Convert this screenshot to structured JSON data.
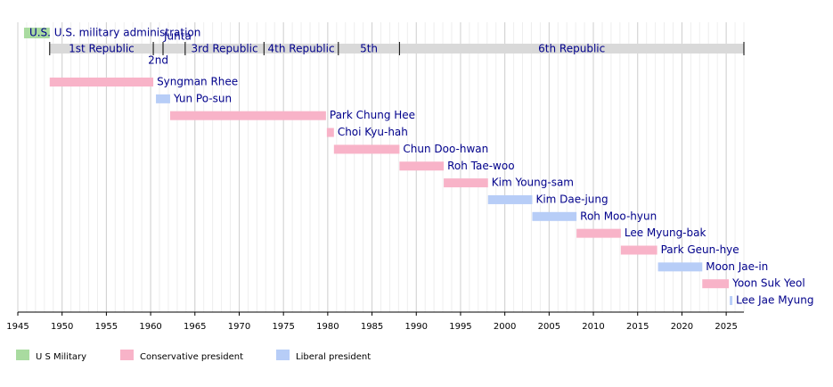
{
  "chart_data": {
    "type": "timeline",
    "xlim": [
      1945,
      2027
    ],
    "xticks": [
      1945,
      1950,
      1955,
      1960,
      1965,
      1970,
      1975,
      1980,
      1985,
      1990,
      1995,
      2000,
      2005,
      2010,
      2015,
      2020,
      2025
    ],
    "grid": true,
    "administration": {
      "label": "U.S. military administration",
      "short": "U.S.",
      "start": 1945.7,
      "end": 1948.6,
      "color": "#a9dba0"
    },
    "periods": [
      {
        "label": "1st Republic",
        "start": 1948.6,
        "end": 1960.3
      },
      {
        "label": "2nd",
        "start": 1960.3,
        "end": 1961.4
      },
      {
        "label": "Junta",
        "start": 1961.4,
        "end": 1963.9
      },
      {
        "label": "3rd Republic",
        "start": 1963.9,
        "end": 1972.8
      },
      {
        "label": "4th Republic",
        "start": 1972.8,
        "end": 1981.2
      },
      {
        "label": "5th",
        "start": 1981.2,
        "end": 1988.1
      },
      {
        "label": "6th Republic",
        "start": 1988.1,
        "end": 2027
      }
    ],
    "period_color": "#d9d9d9",
    "presidents": [
      {
        "name": "Syngman Rhee",
        "start": 1948.6,
        "end": 1960.3,
        "color": "#f8b3c8"
      },
      {
        "name": "Yun Po-sun",
        "start": 1960.6,
        "end": 1962.2,
        "color": "#b7cdf7"
      },
      {
        "name": "Park Chung Hee",
        "start": 1962.2,
        "end": 1979.8,
        "color": "#f8b3c8"
      },
      {
        "name": "Choi Kyu-hah",
        "start": 1979.9,
        "end": 1980.7,
        "color": "#f8b3c8"
      },
      {
        "name": "Chun Doo-hwan",
        "start": 1980.7,
        "end": 1988.1,
        "color": "#f8b3c8"
      },
      {
        "name": "Roh Tae-woo",
        "start": 1988.1,
        "end": 1993.1,
        "color": "#f8b3c8"
      },
      {
        "name": "Kim Young-sam",
        "start": 1993.1,
        "end": 1998.1,
        "color": "#f8b3c8"
      },
      {
        "name": "Kim Dae-jung",
        "start": 1998.1,
        "end": 2003.1,
        "color": "#b7cdf7"
      },
      {
        "name": "Roh Moo-hyun",
        "start": 2003.1,
        "end": 2008.1,
        "color": "#b7cdf7"
      },
      {
        "name": "Lee Myung-bak",
        "start": 2008.1,
        "end": 2013.1,
        "color": "#f8b3c8"
      },
      {
        "name": "Park Geun-hye",
        "start": 2013.1,
        "end": 2017.2,
        "color": "#f8b3c8"
      },
      {
        "name": "Moon Jae-in",
        "start": 2017.3,
        "end": 2022.3,
        "color": "#b7cdf7"
      },
      {
        "name": "Yoon Suk Yeol",
        "start": 2022.3,
        "end": 2025.3,
        "color": "#f8b3c8"
      },
      {
        "name": "Lee Jae Myung",
        "start": 2025.4,
        "end": 2025.7,
        "color": "#b7cdf7"
      }
    ],
    "legend": [
      {
        "name": "U S Military",
        "color": "#a9dba0"
      },
      {
        "name": "Conservative president",
        "color": "#f8b3c8"
      },
      {
        "name": "Liberal president",
        "color": "#b7cdf7"
      }
    ]
  }
}
